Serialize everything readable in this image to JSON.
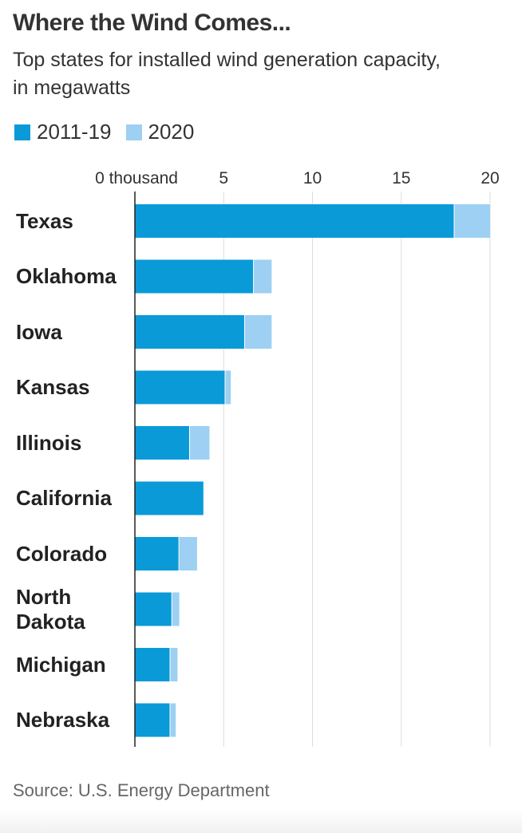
{
  "title": "Where the Wind Comes...",
  "subtitle": "Top states for installed wind generation capacity, in megawatts",
  "source": "Source: U.S. Energy Department",
  "colors": {
    "series1": "#0a9ad8",
    "series2": "#9dd0f2",
    "axis": "#222222",
    "grid": "#dddddd"
  },
  "chart_data": {
    "type": "bar",
    "orientation": "horizontal",
    "stacked": true,
    "categories": [
      "Texas",
      "Oklahoma",
      "Iowa",
      "Kansas",
      "Illinois",
      "California",
      "Colorado",
      "North Dakota",
      "Michigan",
      "Nebraska"
    ],
    "series": [
      {
        "name": "2011-19",
        "values": [
          18.0,
          6.7,
          6.2,
          5.1,
          3.1,
          3.9,
          2.5,
          2.1,
          2.0,
          2.0
        ]
      },
      {
        "name": "2020",
        "values": [
          2.0,
          1.0,
          1.5,
          0.3,
          1.1,
          0.0,
          1.0,
          0.4,
          0.4,
          0.3
        ]
      }
    ],
    "xlim": [
      0,
      20
    ],
    "xticks": [
      0,
      5,
      10,
      15,
      20
    ],
    "xtick_labels": [
      "0 thousand",
      "5",
      "10",
      "15",
      "20"
    ],
    "grid": true,
    "legend_position": "top-left"
  }
}
